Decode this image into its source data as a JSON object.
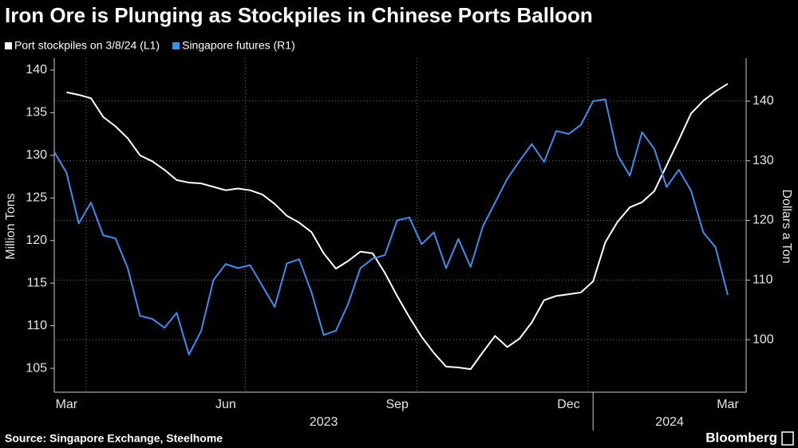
{
  "chart_data": {
    "type": "line",
    "title": "Iron Ore is Plunging as Stockpiles in Chinese Ports Balloon",
    "y_label": "Million Tons",
    "y2_label": "Dollars a Ton",
    "source": "Source: Singapore Exchange, Steelhome",
    "brand": "Bloomberg",
    "categories": [
      null,
      "Mar",
      null,
      null,
      null,
      null,
      null,
      null,
      null,
      null,
      null,
      null,
      null,
      null,
      "Jun",
      null,
      null,
      null,
      null,
      null,
      null,
      null,
      null,
      null,
      null,
      null,
      null,
      null,
      "Sep",
      null,
      null,
      null,
      null,
      null,
      null,
      null,
      null,
      null,
      null,
      null,
      null,
      null,
      "Dec",
      null,
      null,
      null,
      null,
      null,
      null,
      null,
      null,
      null,
      null,
      null,
      null,
      "Mar"
    ],
    "years": [
      {
        "label": "2023",
        "start": 0
      },
      {
        "label": "2024",
        "start": 44
      }
    ],
    "series": [
      {
        "name": "Port stockpiles on 3/8/24 (L1)",
        "color": "#ffffff",
        "axis": "y",
        "values": [
          null,
          137.4,
          137.1,
          136.7,
          134.5,
          133.4,
          132,
          130,
          129.3,
          128.3,
          127.1,
          126.8,
          126.7,
          126.3,
          125.9,
          126.1,
          125.9,
          125.4,
          124.3,
          122.9,
          122.1,
          121,
          118.5,
          116.7,
          117.6,
          118.7,
          118.5,
          116.2,
          113.5,
          111,
          108.7,
          106.8,
          105.2,
          105.1,
          104.9,
          106.9,
          108.8,
          107.5,
          108.5,
          110.4,
          113,
          113.5,
          113.7,
          113.9,
          115.2,
          119.8,
          122.2,
          123.9,
          124.5,
          125.8,
          128.8,
          131.8,
          134.9,
          136.4,
          137.5,
          138.4
        ]
      },
      {
        "name": "Singapore futures (R1)",
        "color": "#3d8ef0",
        "axis": "y2",
        "values": [
          131.5,
          128,
          119.5,
          123,
          117.5,
          117,
          112,
          104,
          103.5,
          102,
          104.5,
          97.5,
          101.5,
          110,
          112.7,
          112,
          112.5,
          109,
          105.5,
          112.8,
          113.5,
          108,
          100.8,
          101.5,
          106,
          112,
          113.6,
          114.2,
          120,
          120.5,
          116,
          118,
          112,
          116.9,
          112.2,
          119,
          123,
          127,
          130,
          132.8,
          129.8,
          135,
          134.5,
          136,
          140,
          140.3,
          131,
          127.5,
          134.8,
          132,
          125.6,
          128.5,
          125,
          118,
          115.5,
          107.5
        ]
      }
    ],
    "ylim": [
      102.2,
      141.4
    ],
    "yticks": [
      105,
      110,
      115,
      120,
      125,
      130,
      135,
      140
    ],
    "y2lim": [
      91.2,
      147.2
    ],
    "y2ticks": [
      100,
      110,
      120,
      130,
      140
    ],
    "grid": true
  }
}
